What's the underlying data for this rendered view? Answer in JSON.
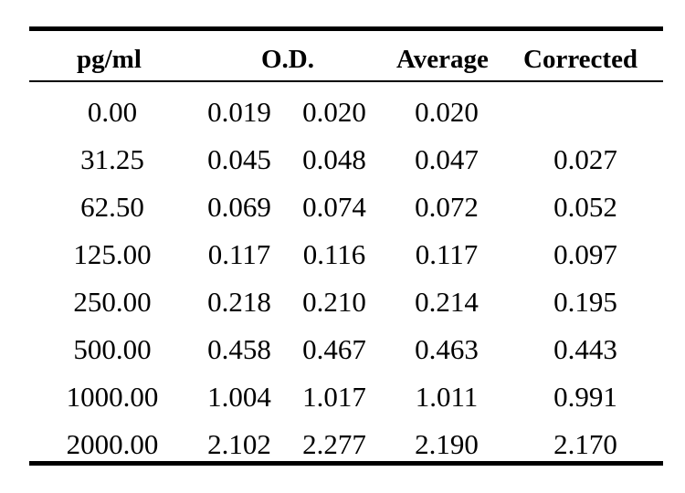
{
  "table": {
    "headers": {
      "concentration": "pg/ml",
      "od": "O.D.",
      "average": "Average",
      "corrected": "Corrected"
    },
    "rows": [
      {
        "concentration": "0.00",
        "od1": "0.019",
        "od2": "0.020",
        "average": "0.020",
        "corrected": ""
      },
      {
        "concentration": "31.25",
        "od1": "0.045",
        "od2": "0.048",
        "average": "0.047",
        "corrected": "0.027"
      },
      {
        "concentration": "62.50",
        "od1": "0.069",
        "od2": "0.074",
        "average": "0.072",
        "corrected": "0.052"
      },
      {
        "concentration": "125.00",
        "od1": "0.117",
        "od2": "0.116",
        "average": "0.117",
        "corrected": "0.097"
      },
      {
        "concentration": "250.00",
        "od1": "0.218",
        "od2": "0.210",
        "average": "0.214",
        "corrected": "0.195"
      },
      {
        "concentration": "500.00",
        "od1": "0.458",
        "od2": "0.467",
        "average": "0.463",
        "corrected": "0.443"
      },
      {
        "concentration": "1000.00",
        "od1": "1.004",
        "od2": "1.017",
        "average": "1.011",
        "corrected": "0.991"
      },
      {
        "concentration": "2000.00",
        "od1": "2.102",
        "od2": "2.277",
        "average": "2.190",
        "corrected": "2.170"
      }
    ]
  }
}
